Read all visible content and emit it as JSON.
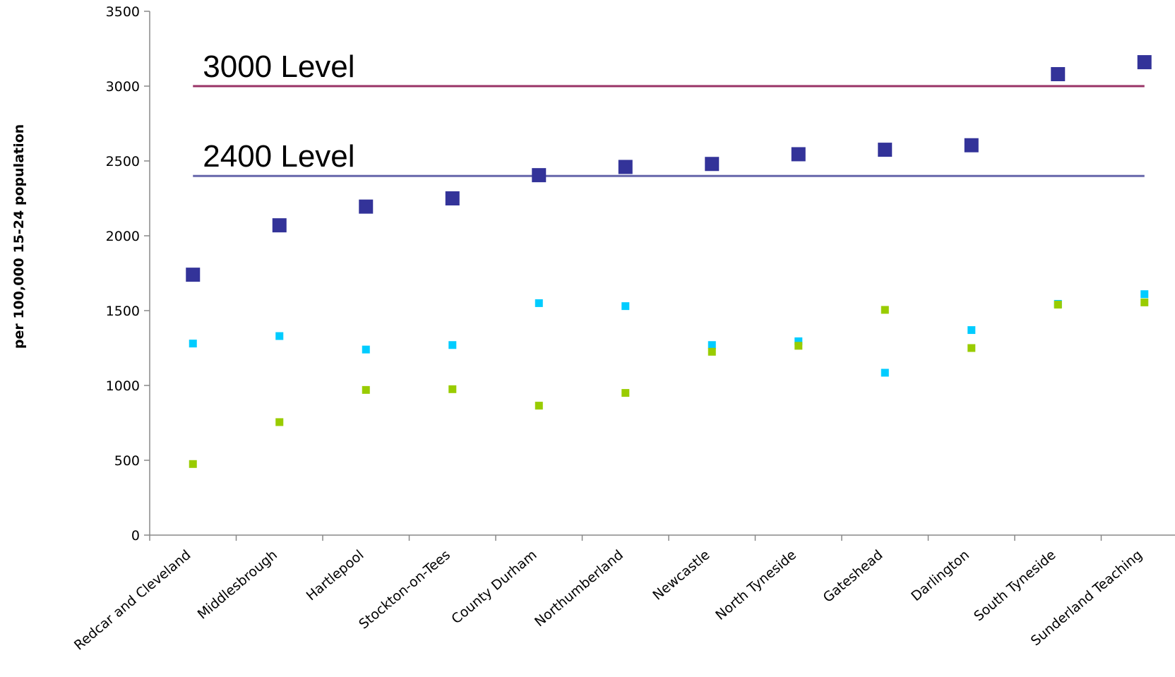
{
  "chart_data": {
    "type": "scatter",
    "title": "",
    "xlabel": "",
    "ylabel": "per 100,000 15-24 population",
    "ylim": [
      0,
      3500
    ],
    "yticks": [
      0,
      500,
      1000,
      1500,
      2000,
      2500,
      3000,
      3500
    ],
    "grid": false,
    "legend": "none",
    "categories": [
      "Redcar and Cleveland",
      "Middlesbrough",
      "Hartlepool",
      "Stockton-on-Tees",
      "County Durham",
      "Northumberland",
      "Newcastle",
      "North Tyneside",
      "Gateshead",
      "Darlington",
      "South Tyneside",
      "Sunderland Teaching"
    ],
    "series": [
      {
        "color": "#333399",
        "marker": "square-large",
        "values": [
          1740,
          2070,
          2195,
          2250,
          2405,
          2460,
          2480,
          2545,
          2575,
          2605,
          3080,
          3160
        ]
      },
      {
        "color": "#00ccff",
        "marker": "square-small",
        "values": [
          1280,
          1330,
          1240,
          1270,
          1550,
          1530,
          1270,
          1295,
          1085,
          1370,
          1545,
          1610
        ]
      },
      {
        "color": "#99cc00",
        "marker": "square-small",
        "values": [
          475,
          755,
          970,
          975,
          865,
          950,
          1225,
          1265,
          1505,
          1250,
          1540,
          1555
        ]
      }
    ],
    "reference_lines": [
      {
        "label": "3000 Level",
        "value": 3000,
        "color": "#993366"
      },
      {
        "label": "2400 Level",
        "value": 2400,
        "color": "#6666aa"
      }
    ]
  }
}
